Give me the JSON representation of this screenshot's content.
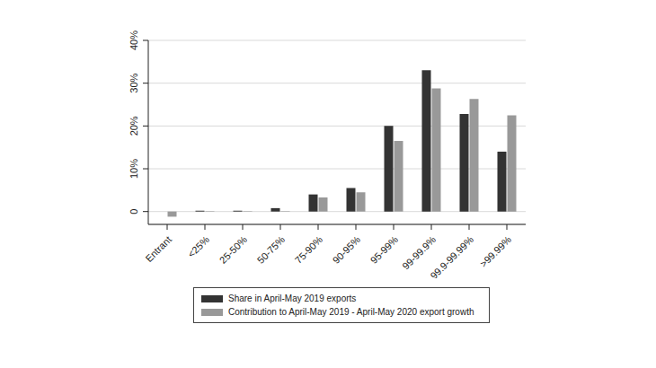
{
  "chart_data": {
    "type": "bar",
    "categories": [
      "Entrant",
      "<25%",
      "25-50%",
      "50-75%",
      "75-90%",
      "90-95%",
      "95-99%",
      "99-99.9%",
      "99.9-99.99%",
      ">99.99%"
    ],
    "series": [
      {
        "name": "Share in April-May 2019 exports",
        "color": "#333333",
        "values": [
          0,
          0.2,
          0.2,
          0.8,
          4.0,
          5.5,
          20,
          33,
          22.8,
          14
        ]
      },
      {
        "name": "Contribution to April-May 2019 - April-May 2020 export growth",
        "color": "#999999",
        "values": [
          -1.2,
          0.1,
          0.1,
          0.1,
          3.3,
          4.5,
          16.5,
          28.8,
          26.3,
          22.5
        ]
      }
    ],
    "ylim": [
      -3,
      40
    ],
    "yticks": [
      0,
      {
        "value": 10,
        "label": "10%"
      },
      {
        "value": 20,
        "label": "20%"
      },
      {
        "value": 30,
        "label": "30%"
      },
      {
        "value": 40,
        "label": "40%"
      }
    ],
    "grid": true,
    "legend": "bottom"
  }
}
